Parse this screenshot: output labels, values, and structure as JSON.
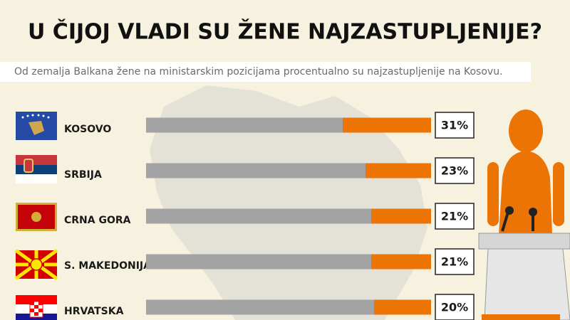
{
  "chart_data": {
    "type": "bar",
    "title": "U ČIJOJ VLADI SU ŽENE NAJZASTUPLJENIJE?",
    "subtitle": "Od zemalja Balkana žene na ministarskim pozicijama procentualno su najzastupljenije na Kosovu.",
    "categories": [
      "KOSOVO",
      "SRBIJA",
      "CRNA GORA",
      "S. MAKEDONIJA",
      "HRVATSKA"
    ],
    "values": [
      31,
      23,
      21,
      21,
      20
    ],
    "value_labels": [
      "31%",
      "23%",
      "21%",
      "21%",
      "20%"
    ],
    "color": "#ec7404",
    "track_color": "#a3a3a3",
    "xlim": [
      0,
      100
    ]
  }
}
